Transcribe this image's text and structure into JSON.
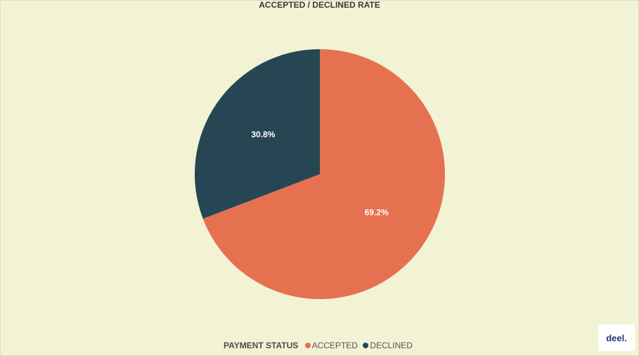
{
  "chart_data": {
    "type": "pie",
    "title": "ACCEPTED / DECLINED RATE",
    "legend_title": "PAYMENT STATUS",
    "legend_position": "bottom",
    "slices": [
      {
        "label": "ACCEPTED",
        "value": 69.2,
        "display": "69.2%",
        "color": "#e67150"
      },
      {
        "label": "DECLINED",
        "value": 30.8,
        "display": "30.8%",
        "color": "#264653"
      }
    ]
  },
  "brand": {
    "logo_text": "deel."
  },
  "colors": {
    "background": "#f2f2d5",
    "accepted": "#e67150",
    "declined": "#264653"
  }
}
